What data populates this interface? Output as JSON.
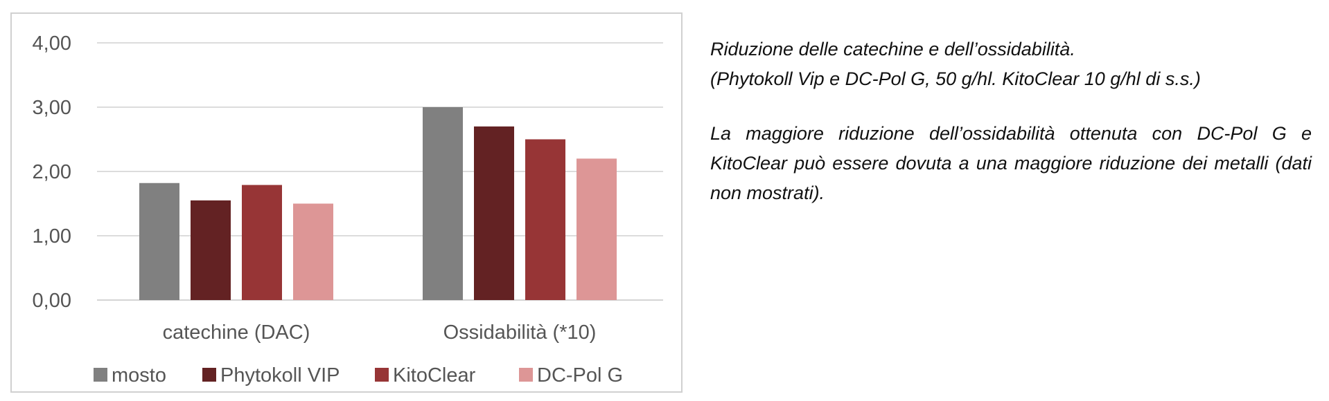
{
  "chart_data": {
    "type": "bar",
    "categories": [
      "catechine (DAC)",
      "Ossidabilità (*10)"
    ],
    "series": [
      {
        "name": "mosto",
        "color": "#808080",
        "values": [
          1.82,
          3.0
        ]
      },
      {
        "name": "Phytokoll VIP",
        "color": "#632223",
        "values": [
          1.55,
          2.7
        ]
      },
      {
        "name": "KitoClear",
        "color": "#973536",
        "values": [
          1.79,
          2.5
        ]
      },
      {
        "name": "DC-Pol G",
        "color": "#dd9696",
        "values": [
          1.5,
          2.2
        ]
      }
    ],
    "yticks": [
      "0,00",
      "1,00",
      "2,00",
      "3,00",
      "4,00"
    ],
    "ylim": [
      0,
      4
    ],
    "grid": true,
    "legend_position": "bottom"
  },
  "notes": {
    "title_line1": "Riduzione delle catechine e dell’ossidabilità.",
    "title_line2": "(Phytokoll Vip e DC-Pol G, 50 g/hl. KitoClear 10 g/hl di s.s.)",
    "body": "La maggiore riduzione dell’ossidabilità ottenuta con DC-Pol G e KitoClear può essere dovuta a una maggiore riduzione dei metalli (dati non mostrati)."
  }
}
